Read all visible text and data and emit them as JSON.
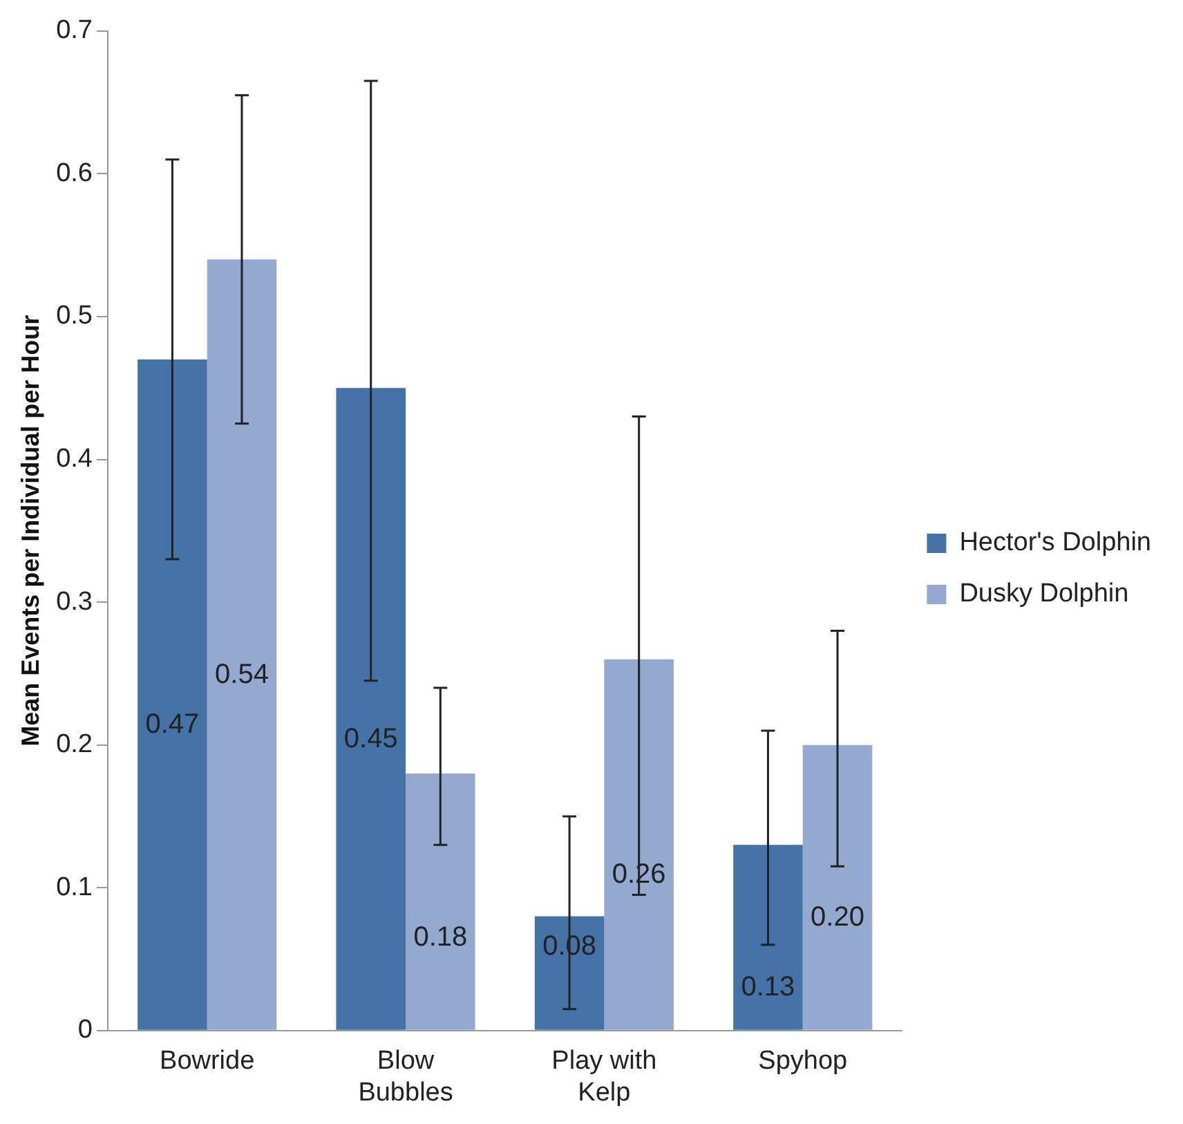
{
  "chart_data": {
    "type": "bar",
    "ylabel": "Mean Events per Individual per Hour",
    "categories": [
      "Bowride",
      "Blow Bubbles",
      "Play with Kelp",
      "Spyhop"
    ],
    "series": [
      {
        "name": "Hector's Dolphin",
        "color": "#4572a7",
        "values": [
          0.47,
          0.45,
          0.08,
          0.13
        ],
        "value_labels": [
          "0.47",
          "0.45",
          "0.08",
          "0.13"
        ],
        "errors": [
          [
            0.33,
            0.61
          ],
          [
            0.245,
            0.665
          ],
          [
            0.015,
            0.15
          ],
          [
            0.06,
            0.21
          ]
        ]
      },
      {
        "name": "Dusky Dolphin",
        "color": "#93a9cf",
        "values": [
          0.54,
          0.18,
          0.26,
          0.2
        ],
        "value_labels": [
          "0.54",
          "0.18",
          "0.26",
          "0.20"
        ],
        "errors": [
          [
            0.425,
            0.655
          ],
          [
            0.13,
            0.24
          ],
          [
            0.095,
            0.43
          ],
          [
            0.115,
            0.28
          ]
        ]
      }
    ],
    "ylim": [
      0,
      0.7
    ],
    "yticks": [
      0,
      0.1,
      0.2,
      0.3,
      0.4,
      0.5,
      0.6,
      0.7
    ],
    "grid": false,
    "legend": "right"
  }
}
